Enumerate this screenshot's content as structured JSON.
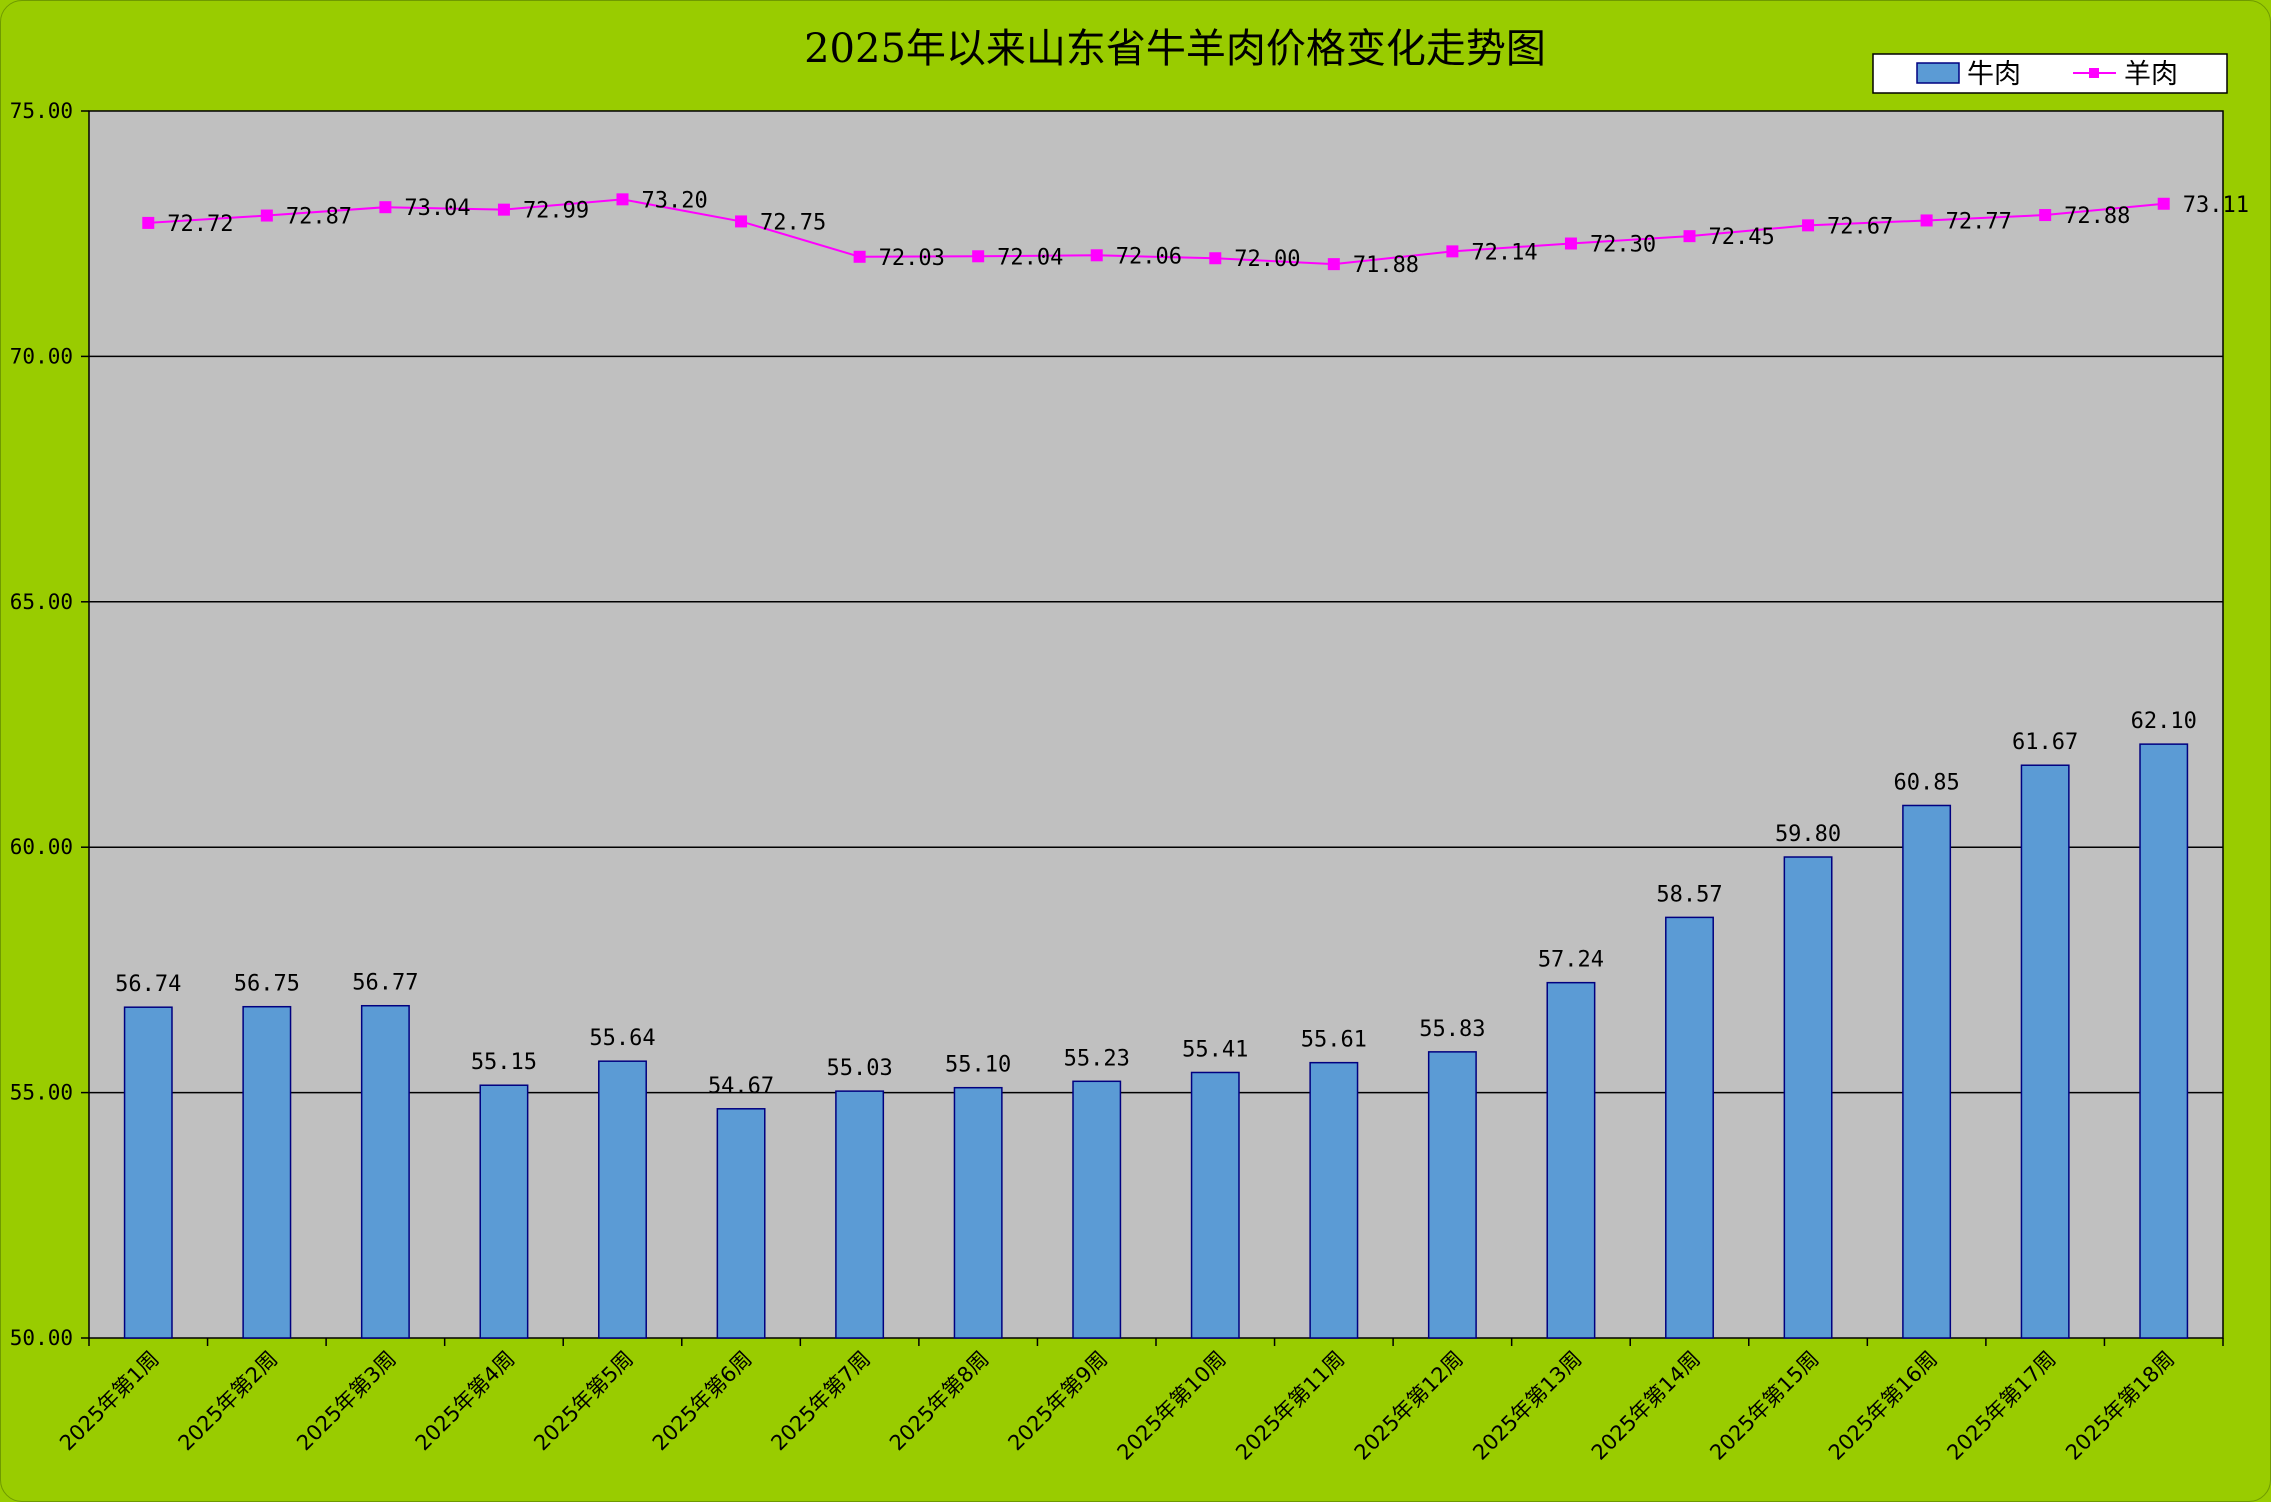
{
  "chart_data": {
    "type": "bar",
    "title": "2025年以来山东省牛羊肉价格变化走势图",
    "xlabel": "",
    "ylabel": "",
    "ylim": [
      50,
      75
    ],
    "yticks": [
      "50.00",
      "55.00",
      "60.00",
      "65.00",
      "70.00",
      "75.00"
    ],
    "grid": true,
    "legend_position": "top-right",
    "categories": [
      "2025年第1周",
      "2025年第2周",
      "2025年第3周",
      "2025年第4周",
      "2025年第5周",
      "2025年第6周",
      "2025年第7周",
      "2025年第8周",
      "2025年第9周",
      "2025年第10周",
      "2025年第11周",
      "2025年第12周",
      "2025年第13周",
      "2025年第14周",
      "2025年第15周",
      "2025年第16周",
      "2025年第17周",
      "2025年第18周"
    ],
    "series": [
      {
        "name": "牛肉",
        "type": "bar",
        "color": "#5b9bd5",
        "values": [
          56.74,
          56.75,
          56.77,
          55.15,
          55.64,
          54.67,
          55.03,
          55.1,
          55.23,
          55.41,
          55.61,
          55.83,
          57.24,
          58.57,
          59.8,
          60.85,
          61.67,
          62.1
        ],
        "labels": [
          "56.74",
          "56.75",
          "56.77",
          "55.15",
          "55.64",
          "54.67",
          "55.03",
          "55.10",
          "55.23",
          "55.41",
          "55.61",
          "55.83",
          "57.24",
          "58.57",
          "59.80",
          "60.85",
          "61.67",
          "62.10"
        ]
      },
      {
        "name": "羊肉",
        "type": "line",
        "color": "#ff00ff",
        "values": [
          72.72,
          72.87,
          73.04,
          72.99,
          73.2,
          72.75,
          72.03,
          72.04,
          72.06,
          72.0,
          71.88,
          72.14,
          72.3,
          72.45,
          72.67,
          72.77,
          72.88,
          73.11
        ],
        "labels": [
          "72.72",
          "72.87",
          "73.04",
          "72.99",
          "73.20",
          "72.75",
          "72.03",
          "72.04",
          "72.06",
          "72.00",
          "71.88",
          "72.14",
          "72.30",
          "72.45",
          "72.67",
          "72.77",
          "72.88",
          "73.11"
        ]
      }
    ],
    "colors": {
      "background": "#99cc00",
      "plot_area": "#c0c0c0",
      "bar_border": "#000080"
    }
  }
}
